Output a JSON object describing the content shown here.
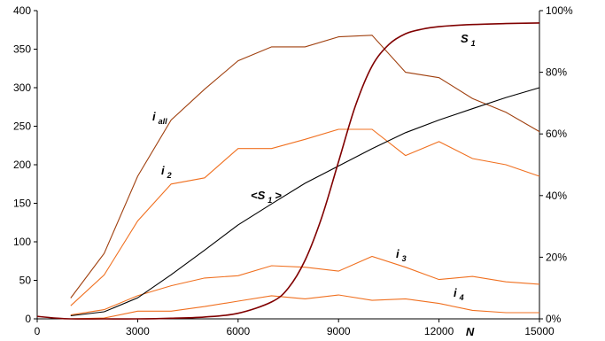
{
  "chart_data": {
    "type": "line",
    "xlabel": "N",
    "x_ticks": [
      0,
      3000,
      6000,
      9000,
      12000,
      15000
    ],
    "xlim": [
      0,
      15000
    ],
    "y_left": {
      "ylim": [
        0,
        400
      ],
      "ticks": [
        0,
        50,
        100,
        150,
        200,
        250,
        300,
        350,
        400
      ]
    },
    "y_right": {
      "ylim": [
        0,
        100
      ],
      "ticks": [
        0,
        20,
        40,
        60,
        80,
        100
      ],
      "tick_labels": [
        "0%",
        "20%",
        "40%",
        "60%",
        "80%",
        "100%"
      ]
    },
    "grid": false,
    "series": [
      {
        "name": "i all",
        "label": {
          "main": "i",
          "sub": "all"
        },
        "axis": "left",
        "color": "#a0400f",
        "x": [
          1000,
          2000,
          3000,
          4000,
          5000,
          6000,
          7000,
          8000,
          9000,
          10000,
          11000,
          12000,
          13000,
          14000,
          15000
        ],
        "values": [
          27,
          85,
          185,
          258,
          298,
          335,
          353,
          353,
          366,
          368,
          320,
          313,
          286,
          268,
          243
        ]
      },
      {
        "name": "i 2",
        "label": {
          "main": "i",
          "sub": "2"
        },
        "axis": "left",
        "color": "#f07020",
        "x": [
          1000,
          2000,
          3000,
          4000,
          5000,
          6000,
          7000,
          8000,
          9000,
          10000,
          11000,
          12000,
          13000,
          14000,
          15000
        ],
        "values": [
          17,
          57,
          127,
          175,
          183,
          221,
          221,
          233,
          246,
          246,
          212,
          230,
          208,
          200,
          185
        ]
      },
      {
        "name": "i 3",
        "label": {
          "main": "i",
          "sub": "3"
        },
        "axis": "left",
        "color": "#f07020",
        "x": [
          1000,
          2000,
          3000,
          4000,
          5000,
          6000,
          7000,
          8000,
          9000,
          10000,
          11000,
          12000,
          13000,
          14000,
          15000
        ],
        "values": [
          5,
          12,
          30,
          43,
          53,
          56,
          69,
          67,
          62,
          81,
          67,
          51,
          55,
          48,
          45
        ]
      },
      {
        "name": "i 4",
        "label": {
          "main": "i",
          "sub": "4"
        },
        "axis": "left",
        "color": "#f07020",
        "x": [
          1000,
          2000,
          3000,
          4000,
          5000,
          6000,
          7000,
          8000,
          9000,
          10000,
          11000,
          12000,
          13000,
          14000,
          15000
        ],
        "values": [
          0,
          1,
          10,
          10,
          16,
          23,
          30,
          26,
          31,
          24,
          26,
          20,
          11,
          8,
          8
        ]
      },
      {
        "name": "<S 1>",
        "label": {
          "main": "<S",
          "sub": "1",
          "tail": ">"
        },
        "axis": "right",
        "color": "#000000",
        "x": [
          1000,
          2000,
          3000,
          4000,
          5000,
          6000,
          7000,
          8000,
          9000,
          10000,
          11000,
          12000,
          13000,
          14000,
          15000
        ],
        "values": [
          1,
          2.3,
          6.8,
          14.3,
          22.3,
          30.5,
          37.3,
          44,
          49.6,
          55.2,
          60.4,
          64.5,
          68.2,
          71.8,
          75
        ]
      },
      {
        "name": "S 1",
        "label": {
          "main": "S",
          "sub": "1"
        },
        "axis": "right",
        "color": "#800000",
        "x": [
          0,
          500,
          1000,
          2000,
          3000,
          4000,
          5000,
          6000,
          7000,
          7500,
          8000,
          8500,
          9000,
          9500,
          10000,
          10500,
          11000,
          11500,
          12000,
          13000,
          14000,
          15000
        ],
        "values": [
          0.8,
          0.3,
          0,
          0,
          0,
          0.2,
          0.6,
          1.8,
          5.5,
          10,
          19,
          33,
          51,
          69,
          82,
          89,
          92.5,
          94,
          94.8,
          95.5,
          95.8,
          96
        ]
      }
    ]
  }
}
